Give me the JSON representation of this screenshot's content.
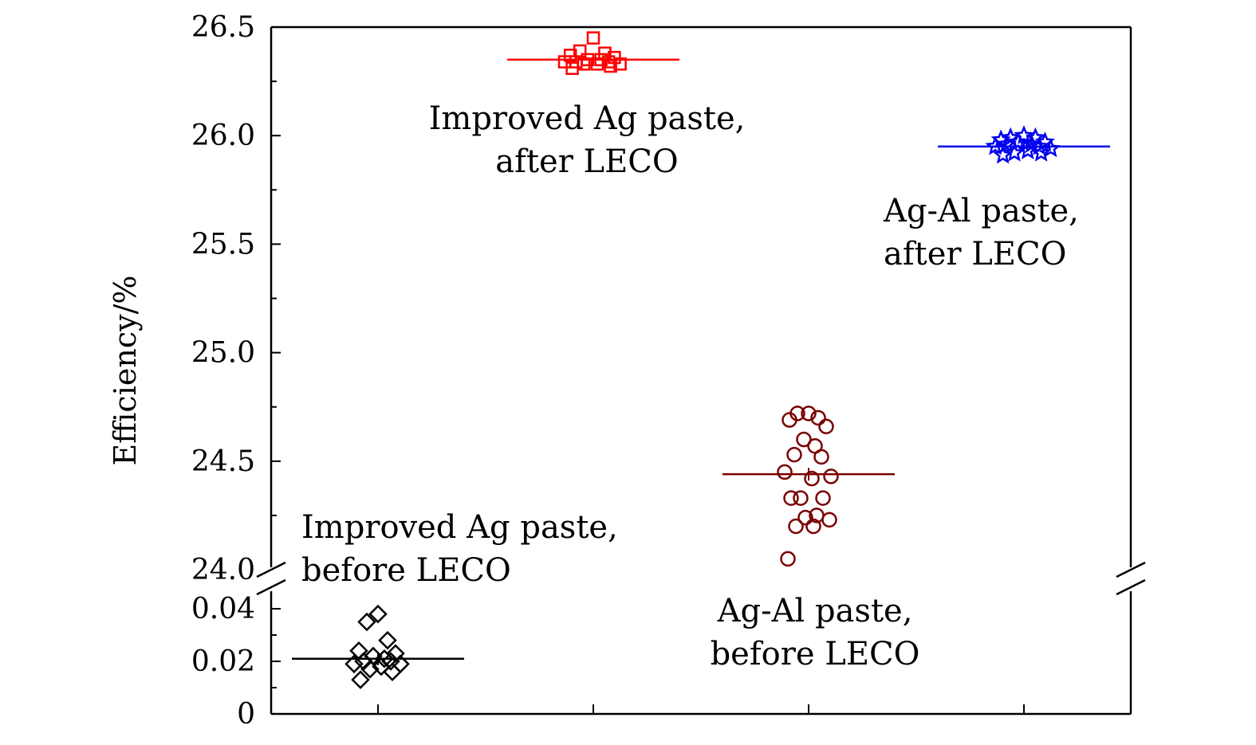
{
  "chart_data": {
    "type": "scatter",
    "title": "",
    "xlabel": "",
    "ylabel": "Efficiency/%",
    "axis_break": true,
    "upper_ylim": [
      24.0,
      26.5
    ],
    "lower_ylim": [
      0,
      0.045
    ],
    "upper_yticks": [
      "26.5",
      "26.0",
      "25.5",
      "25.0",
      "24.5",
      "24.0"
    ],
    "lower_yticks": [
      "0.04",
      "0.02",
      "0"
    ],
    "grid": false,
    "legend": "none",
    "series": [
      {
        "group": 1,
        "marker": "diamond",
        "color": "#000000",
        "mean": 0.021,
        "values": [
          0.038,
          0.035,
          0.028,
          0.024,
          0.023,
          0.022,
          0.021,
          0.02,
          0.02,
          0.019,
          0.019,
          0.018,
          0.017,
          0.016,
          0.013
        ]
      },
      {
        "group": 2,
        "marker": "square",
        "color": "#ff0000",
        "mean": 26.35,
        "values": [
          26.45,
          26.39,
          26.38,
          26.37,
          26.36,
          26.35,
          26.35,
          26.34,
          26.34,
          26.34,
          26.33,
          26.33,
          26.33,
          26.32,
          26.31
        ]
      },
      {
        "group": 3,
        "marker": "circle",
        "color": "#7a0000",
        "mean": 24.44,
        "values": [
          24.72,
          24.72,
          24.7,
          24.69,
          24.66,
          24.6,
          24.57,
          24.53,
          24.52,
          24.45,
          24.43,
          24.42,
          24.33,
          24.33,
          24.33,
          24.25,
          24.24,
          24.23,
          24.2,
          24.2,
          24.05
        ]
      },
      {
        "group": 4,
        "marker": "star",
        "color": "#0000ee",
        "mean": 25.95,
        "values": [
          26.0,
          25.99,
          25.99,
          25.98,
          25.97,
          25.97,
          25.96,
          25.96,
          25.95,
          25.95,
          25.94,
          25.93,
          25.92,
          25.92,
          25.91
        ]
      }
    ],
    "annotations": [
      {
        "lines": [
          "Improved Ag paste,",
          "before LECO"
        ],
        "color": "#000000"
      },
      {
        "lines": [
          "Improved Ag paste,",
          "after LECO"
        ],
        "color": "#000000"
      },
      {
        "lines": [
          "Ag-Al paste,",
          "before LECO"
        ],
        "color": "#000000"
      },
      {
        "lines": [
          "Ag-Al paste,",
          "after LECO"
        ],
        "color": "#000000"
      }
    ]
  }
}
